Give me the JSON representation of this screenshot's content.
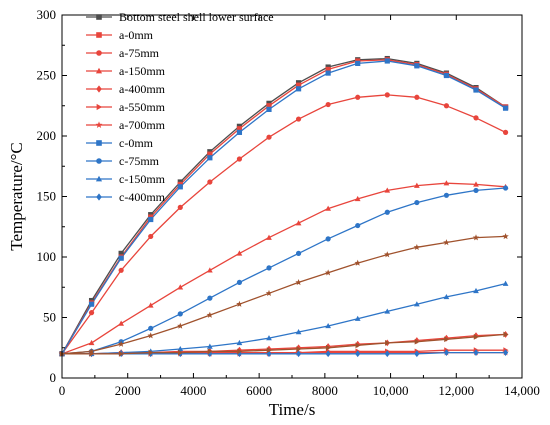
{
  "chart_data": {
    "type": "line",
    "xlabel": "Time/s",
    "ylabel": "Temperature/°C",
    "xlim": [
      0,
      14000
    ],
    "ylim": [
      0,
      300
    ],
    "x_ticks": [
      0,
      2000,
      4000,
      6000,
      8000,
      10000,
      12000,
      14000
    ],
    "x_tick_labels": [
      "0",
      "2000",
      "4000",
      "6000",
      "8000",
      "10,000",
      "12,000",
      "14,000"
    ],
    "y_ticks": [
      0,
      50,
      100,
      150,
      200,
      250,
      300
    ],
    "y_tick_labels": [
      "0",
      "50",
      "100",
      "150",
      "200",
      "250",
      "300"
    ],
    "grid": false,
    "legend_position": "top-left",
    "x": [
      0,
      900,
      1800,
      2700,
      3600,
      4500,
      5400,
      6300,
      7200,
      8100,
      9000,
      9900,
      10800,
      11700,
      12600,
      13500
    ],
    "series": [
      {
        "name": "Bottom steel shell lower surface",
        "color": "#4d4d4d",
        "marker": "square",
        "values": [
          20,
          64,
          103,
          135,
          162,
          187,
          208,
          227,
          244,
          257,
          263,
          264,
          260,
          252,
          240,
          224
        ]
      },
      {
        "name": "a-0mm",
        "color": "#e8453c",
        "marker": "square",
        "values": [
          20,
          62,
          100,
          133,
          160,
          185,
          206,
          225,
          242,
          255,
          262,
          263,
          259,
          251,
          239,
          224
        ]
      },
      {
        "name": "a-75mm",
        "color": "#e8453c",
        "marker": "circle",
        "values": [
          20,
          54,
          89,
          117,
          141,
          162,
          181,
          199,
          214,
          226,
          232,
          234,
          232,
          225,
          215,
          203
        ]
      },
      {
        "name": "a-150mm",
        "color": "#e8453c",
        "marker": "triangle-up",
        "values": [
          20,
          29,
          45,
          60,
          75,
          89,
          103,
          116,
          128,
          140,
          148,
          155,
          159,
          161,
          160,
          158
        ]
      },
      {
        "name": "a-400mm",
        "color": "#e8453c",
        "marker": "diamond",
        "values": [
          20,
          20,
          21,
          21,
          22,
          22,
          23,
          24,
          25,
          26,
          28,
          29,
          31,
          33,
          35,
          36
        ]
      },
      {
        "name": "a-550mm",
        "color": "#e8453c",
        "marker": "triangle-right",
        "values": [
          20,
          20,
          20,
          20,
          21,
          21,
          21,
          21,
          21,
          22,
          22,
          22,
          22,
          23,
          23,
          23
        ]
      },
      {
        "name": "a-700mm",
        "color": "#e8453c",
        "marker": "star",
        "values": [
          20,
          20,
          20,
          20,
          20,
          20,
          20,
          20,
          21,
          21,
          21,
          21,
          21,
          21,
          21,
          21
        ]
      },
      {
        "name": "c-0mm",
        "color": "#2e75c7",
        "marker": "square",
        "values": [
          20,
          61,
          99,
          131,
          158,
          182,
          203,
          222,
          239,
          252,
          260,
          262,
          258,
          250,
          238,
          223
        ]
      },
      {
        "name": "c-75mm",
        "color": "#2e75c7",
        "marker": "circle",
        "values": [
          20,
          22,
          30,
          41,
          53,
          66,
          79,
          91,
          103,
          115,
          126,
          137,
          145,
          151,
          155,
          157
        ]
      },
      {
        "name": "c-150mm",
        "color": "#2e75c7",
        "marker": "triangle-up",
        "values": [
          20,
          20,
          21,
          22,
          24,
          26,
          29,
          33,
          38,
          43,
          49,
          55,
          61,
          67,
          72,
          78
        ]
      },
      {
        "name": "c-400mm",
        "color": "#2e75c7",
        "marker": "diamond",
        "values": [
          20,
          20,
          20,
          20,
          20,
          20,
          20,
          20,
          20,
          20,
          20,
          20,
          20,
          21,
          21,
          21
        ]
      },
      {
        "name": "",
        "color": "#a0522d",
        "marker": "star",
        "values": [
          20,
          22,
          28,
          35,
          43,
          52,
          61,
          70,
          79,
          87,
          95,
          102,
          108,
          112,
          116,
          117
        ]
      },
      {
        "name": "",
        "color": "#a0522d",
        "marker": "triangle-right",
        "values": [
          20,
          20,
          20,
          21,
          21,
          22,
          22,
          23,
          24,
          25,
          27,
          29,
          30,
          32,
          34,
          36
        ]
      }
    ]
  }
}
